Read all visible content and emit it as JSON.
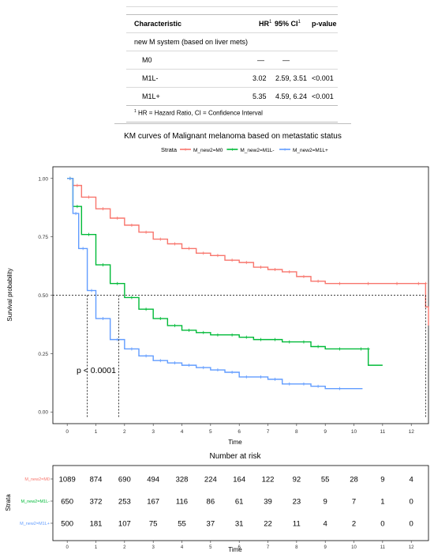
{
  "table": {
    "headers": [
      "Characteristic",
      "HR",
      "95% CI",
      "p-value"
    ],
    "header_superscripts": [
      "1",
      "1"
    ],
    "section_label": "new M system (based on liver mets)",
    "rows": [
      {
        "label": "M0",
        "hr": "—",
        "ci": "—",
        "p": ""
      },
      {
        "label": "M1L-",
        "hr": "3.02",
        "ci": "2.59, 3.51",
        "p": "<0.001"
      },
      {
        "label": "M1L+",
        "hr": "5.35",
        "ci": "4.59, 6.24",
        "p": "<0.001"
      }
    ],
    "footnote_mark": "1",
    "footnote": "HR = Hazard Ratio, CI = Confidence Interval"
  },
  "chart_data": {
    "type": "line",
    "title": "KM curves of Malignant melanoma based on metastatic status",
    "legend_title": "Strata",
    "legend_position": "top",
    "xlabel": "Time",
    "ylabel": "Survival probability",
    "xlim": [
      -0.5,
      12.6
    ],
    "ylim": [
      -0.05,
      1.05
    ],
    "x_ticks": [
      0,
      1,
      2,
      3,
      4,
      5,
      6,
      7,
      8,
      9,
      10,
      11,
      12
    ],
    "y_ticks": [
      "0.00",
      "0.25",
      "0.50",
      "0.75",
      "1.00"
    ],
    "y_tick_values": [
      0,
      0.25,
      0.5,
      0.75,
      1.0
    ],
    "median_line_y": 0.5,
    "medians": [
      12.5,
      1.8,
      0.7
    ],
    "pvalue_text": "p < 0.0001",
    "series": [
      {
        "name": "M_new2=M0",
        "color": "#F8766D",
        "x": [
          0,
          0.2,
          0.5,
          1.0,
          1.5,
          2.0,
          2.5,
          3.0,
          3.5,
          4.0,
          4.5,
          5.0,
          5.5,
          6.0,
          6.5,
          7.0,
          7.5,
          8.0,
          8.5,
          9.0,
          10.0,
          11.0,
          12.0,
          12.5,
          12.5,
          12.6
        ],
        "y": [
          1.0,
          0.97,
          0.92,
          0.87,
          0.83,
          0.8,
          0.77,
          0.74,
          0.72,
          0.7,
          0.68,
          0.67,
          0.65,
          0.64,
          0.62,
          0.61,
          0.6,
          0.58,
          0.56,
          0.55,
          0.55,
          0.55,
          0.55,
          0.55,
          0.45,
          0.37
        ]
      },
      {
        "name": "M_new2=M1L-",
        "color": "#00BA38",
        "x": [
          0,
          0.2,
          0.5,
          1.0,
          1.5,
          2.0,
          2.5,
          3.0,
          3.5,
          4.0,
          4.5,
          5.0,
          5.5,
          6.0,
          6.5,
          7.0,
          7.5,
          8.0,
          8.5,
          9.0,
          10.0,
          10.5,
          10.5,
          11.0
        ],
        "y": [
          1.0,
          0.88,
          0.76,
          0.63,
          0.55,
          0.49,
          0.44,
          0.4,
          0.37,
          0.35,
          0.34,
          0.33,
          0.33,
          0.32,
          0.31,
          0.31,
          0.3,
          0.3,
          0.28,
          0.27,
          0.27,
          0.27,
          0.2,
          0.2
        ]
      },
      {
        "name": "M_new2=M1L+",
        "color": "#619CFF",
        "x": [
          0,
          0.2,
          0.4,
          0.7,
          1.0,
          1.5,
          2.0,
          2.5,
          3.0,
          3.5,
          4.0,
          4.5,
          5.0,
          5.5,
          6.0,
          6.5,
          7.0,
          7.5,
          8.0,
          8.5,
          9.0,
          10.0,
          10.3
        ],
        "y": [
          1.0,
          0.85,
          0.7,
          0.52,
          0.4,
          0.31,
          0.27,
          0.24,
          0.22,
          0.21,
          0.2,
          0.19,
          0.18,
          0.17,
          0.15,
          0.15,
          0.14,
          0.12,
          0.12,
          0.11,
          0.1,
          0.1,
          0.1
        ]
      }
    ]
  },
  "risk_table": {
    "title": "Number at risk",
    "ylabel": "Strata",
    "xlabel": "Time",
    "times": [
      0,
      1,
      2,
      3,
      4,
      5,
      6,
      7,
      8,
      9,
      10,
      11,
      12
    ],
    "rows": [
      {
        "label": "M_new2=M0",
        "color": "#F8766D",
        "values": [
          "1089",
          "874",
          "690",
          "494",
          "328",
          "224",
          "164",
          "122",
          "92",
          "55",
          "28",
          "9",
          "4"
        ]
      },
      {
        "label": "M_new2=M1L-",
        "color": "#00BA38",
        "values": [
          "650",
          "372",
          "253",
          "167",
          "116",
          "86",
          "61",
          "39",
          "23",
          "9",
          "7",
          "1",
          "0"
        ]
      },
      {
        "label": "M_new2=M1L+",
        "color": "#619CFF",
        "values": [
          "500",
          "181",
          "107",
          "75",
          "55",
          "37",
          "31",
          "22",
          "11",
          "4",
          "2",
          "0",
          "0"
        ]
      }
    ]
  }
}
